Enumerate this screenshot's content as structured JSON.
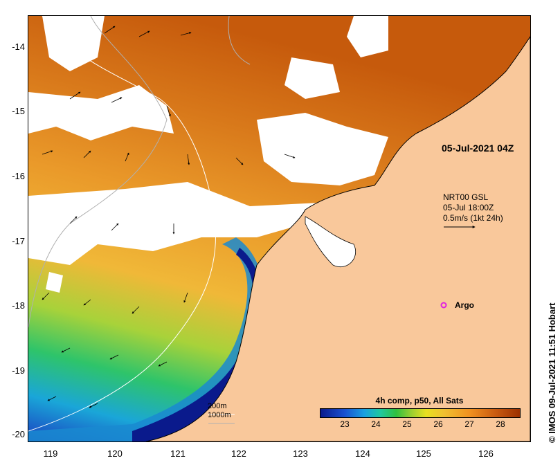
{
  "map": {
    "date_label": "05-Jul-2021 04Z",
    "current_legend": [
      "NRT00 GSL",
      "05-Jul 18:00Z",
      "0.5m/s (1kt 24h)"
    ],
    "argo_label": "Argo",
    "contour_legend": [
      "200m",
      "1000m"
    ],
    "colorbar": {
      "title": "4h comp, p50, All Sats",
      "ticks": [
        "23",
        "24",
        "25",
        "26",
        "27",
        "28"
      ],
      "ticks_values": [
        23,
        24,
        25,
        26,
        27,
        28
      ],
      "range": [
        22.2,
        28.6
      ]
    },
    "credit": "© IMOS 09-Jul-2021 11:51 Hobart",
    "lat_labels": [
      "-14",
      "-15",
      "-16",
      "-17",
      "-18",
      "-19",
      "-20"
    ],
    "lon_labels": [
      "119",
      "120",
      "121",
      "122",
      "123",
      "124",
      "125",
      "126"
    ],
    "colors": {
      "land": "#f9c89b",
      "cloud": "#ffffff",
      "warm": "#d4700a",
      "cold": "#0a1a8c",
      "argo": "#e020e0"
    }
  }
}
